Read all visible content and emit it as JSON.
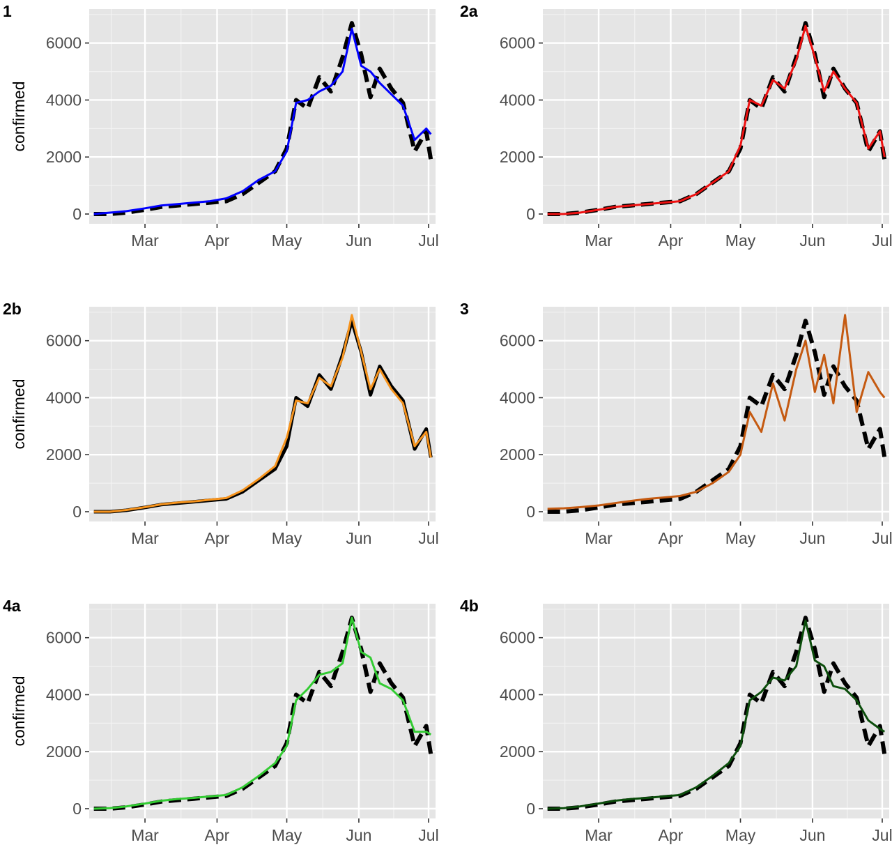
{
  "chart_data": [
    {
      "type": "line",
      "tag": "1",
      "xlabel": "",
      "ylabel": "confirmed",
      "ylim": [
        0,
        6800
      ],
      "xlim": [
        "2020-02-06",
        "2020-07-04"
      ],
      "grid": true,
      "x_ticks": [
        {
          "date": "2020-03-01",
          "label": "Mar"
        },
        {
          "date": "2020-04-01",
          "label": "Apr"
        },
        {
          "date": "2020-05-01",
          "label": "May"
        },
        {
          "date": "2020-06-01",
          "label": "Jun"
        },
        {
          "date": "2020-07-01",
          "label": "Jul"
        }
      ],
      "y_ticks": [
        0,
        2000,
        4000,
        6000
      ],
      "observed": {
        "color": "#000000",
        "style": "dashed",
        "x": [
          "2020-02-08",
          "2020-02-15",
          "2020-02-22",
          "2020-03-01",
          "2020-03-08",
          "2020-03-15",
          "2020-03-22",
          "2020-03-29",
          "2020-04-05",
          "2020-04-12",
          "2020-04-19",
          "2020-04-26",
          "2020-05-01",
          "2020-05-05",
          "2020-05-10",
          "2020-05-15",
          "2020-05-20",
          "2020-05-25",
          "2020-05-29",
          "2020-06-02",
          "2020-06-06",
          "2020-06-10",
          "2020-06-15",
          "2020-06-20",
          "2020-06-25",
          "2020-06-30",
          "2020-07-02"
        ],
        "y": [
          0,
          0,
          50,
          150,
          250,
          300,
          350,
          400,
          450,
          700,
          1100,
          1500,
          2300,
          4000,
          3700,
          4800,
          4300,
          5500,
          6700,
          5600,
          4100,
          5100,
          4400,
          3900,
          2200,
          2900,
          1900
        ]
      },
      "fitted": {
        "color": "#0000ff",
        "style": "solid",
        "x": [
          "2020-02-08",
          "2020-02-15",
          "2020-02-22",
          "2020-03-01",
          "2020-03-08",
          "2020-03-15",
          "2020-03-22",
          "2020-03-29",
          "2020-04-05",
          "2020-04-12",
          "2020-04-19",
          "2020-04-26",
          "2020-05-01",
          "2020-05-05",
          "2020-05-10",
          "2020-05-15",
          "2020-05-20",
          "2020-05-25",
          "2020-05-29",
          "2020-06-02",
          "2020-06-06",
          "2020-06-10",
          "2020-06-15",
          "2020-06-20",
          "2020-06-25",
          "2020-06-30",
          "2020-07-02"
        ],
        "y": [
          0,
          50,
          100,
          200,
          300,
          350,
          400,
          450,
          550,
          800,
          1200,
          1500,
          2200,
          3900,
          4000,
          4300,
          4500,
          5000,
          6500,
          5200,
          5000,
          4600,
          4200,
          3800,
          2600,
          3000,
          2800
        ]
      }
    },
    {
      "type": "line",
      "tag": "2a",
      "xlabel": "",
      "ylabel": "",
      "ylim": [
        0,
        6800
      ],
      "xlim": [
        "2020-02-06",
        "2020-07-04"
      ],
      "grid": true,
      "x_ticks": [
        {
          "date": "2020-03-01",
          "label": "Mar"
        },
        {
          "date": "2020-04-01",
          "label": "Apr"
        },
        {
          "date": "2020-05-01",
          "label": "May"
        },
        {
          "date": "2020-06-01",
          "label": "Jun"
        },
        {
          "date": "2020-07-01",
          "label": "Jul"
        }
      ],
      "y_ticks": [
        0,
        2000,
        4000,
        6000
      ],
      "observed": {
        "color": "#000000",
        "style": "dashed",
        "x": [
          "2020-02-08",
          "2020-02-15",
          "2020-02-22",
          "2020-03-01",
          "2020-03-08",
          "2020-03-15",
          "2020-03-22",
          "2020-03-29",
          "2020-04-05",
          "2020-04-12",
          "2020-04-19",
          "2020-04-26",
          "2020-05-01",
          "2020-05-05",
          "2020-05-10",
          "2020-05-15",
          "2020-05-20",
          "2020-05-25",
          "2020-05-29",
          "2020-06-02",
          "2020-06-06",
          "2020-06-10",
          "2020-06-15",
          "2020-06-20",
          "2020-06-25",
          "2020-06-30",
          "2020-07-02"
        ],
        "y": [
          0,
          0,
          50,
          150,
          250,
          300,
          350,
          400,
          450,
          700,
          1100,
          1500,
          2300,
          4000,
          3700,
          4800,
          4300,
          5500,
          6700,
          5600,
          4100,
          5100,
          4400,
          3900,
          2200,
          2900,
          1900
        ]
      },
      "fitted": {
        "color": "#ee1111",
        "style": "solid",
        "x": [
          "2020-02-08",
          "2020-02-15",
          "2020-02-22",
          "2020-03-01",
          "2020-03-08",
          "2020-03-15",
          "2020-03-22",
          "2020-03-29",
          "2020-04-05",
          "2020-04-12",
          "2020-04-19",
          "2020-04-26",
          "2020-05-01",
          "2020-05-05",
          "2020-05-10",
          "2020-05-15",
          "2020-05-20",
          "2020-05-25",
          "2020-05-29",
          "2020-06-02",
          "2020-06-06",
          "2020-06-10",
          "2020-06-15",
          "2020-06-20",
          "2020-06-25",
          "2020-06-30",
          "2020-07-02"
        ],
        "y": [
          0,
          0,
          50,
          150,
          250,
          300,
          350,
          400,
          450,
          700,
          1100,
          1500,
          2400,
          4000,
          3800,
          4700,
          4400,
          5400,
          6600,
          5500,
          4300,
          5000,
          4400,
          3900,
          2300,
          2900,
          2000
        ]
      }
    },
    {
      "type": "line",
      "tag": "2b",
      "xlabel": "",
      "ylabel": "confirmed",
      "ylim": [
        0,
        6800
      ],
      "xlim": [
        "2020-02-06",
        "2020-07-04"
      ],
      "grid": true,
      "x_ticks": [
        {
          "date": "2020-03-01",
          "label": "Mar"
        },
        {
          "date": "2020-04-01",
          "label": "Apr"
        },
        {
          "date": "2020-05-01",
          "label": "May"
        },
        {
          "date": "2020-06-01",
          "label": "Jun"
        },
        {
          "date": "2020-07-01",
          "label": "Jul"
        }
      ],
      "y_ticks": [
        0,
        2000,
        4000,
        6000
      ],
      "observed": {
        "color": "#000000",
        "style": "solid",
        "x": [
          "2020-02-08",
          "2020-02-15",
          "2020-02-22",
          "2020-03-01",
          "2020-03-08",
          "2020-03-15",
          "2020-03-22",
          "2020-03-29",
          "2020-04-05",
          "2020-04-12",
          "2020-04-19",
          "2020-04-26",
          "2020-05-01",
          "2020-05-05",
          "2020-05-10",
          "2020-05-15",
          "2020-05-20",
          "2020-05-25",
          "2020-05-29",
          "2020-06-02",
          "2020-06-06",
          "2020-06-10",
          "2020-06-15",
          "2020-06-20",
          "2020-06-25",
          "2020-06-30",
          "2020-07-02"
        ],
        "y": [
          0,
          0,
          50,
          150,
          250,
          300,
          350,
          400,
          450,
          700,
          1100,
          1500,
          2300,
          4000,
          3700,
          4800,
          4300,
          5500,
          6700,
          5600,
          4100,
          5100,
          4400,
          3900,
          2200,
          2900,
          1900
        ]
      },
      "fitted": {
        "color": "#f7941d",
        "style": "solid",
        "x": [
          "2020-02-08",
          "2020-02-15",
          "2020-02-22",
          "2020-03-01",
          "2020-03-08",
          "2020-03-15",
          "2020-03-22",
          "2020-03-29",
          "2020-04-05",
          "2020-04-12",
          "2020-04-19",
          "2020-04-26",
          "2020-05-01",
          "2020-05-05",
          "2020-05-10",
          "2020-05-15",
          "2020-05-20",
          "2020-05-25",
          "2020-05-29",
          "2020-06-02",
          "2020-06-06",
          "2020-06-10",
          "2020-06-15",
          "2020-06-20",
          "2020-06-25",
          "2020-06-30",
          "2020-07-02"
        ],
        "y": [
          0,
          0,
          60,
          160,
          260,
          320,
          360,
          420,
          480,
          750,
          1150,
          1600,
          2600,
          3900,
          3800,
          4700,
          4400,
          5400,
          6900,
          5600,
          4300,
          5000,
          4300,
          3800,
          2300,
          2800,
          1900
        ]
      }
    },
    {
      "type": "line",
      "tag": "3",
      "xlabel": "",
      "ylabel": "",
      "ylim": [
        0,
        6800
      ],
      "xlim": [
        "2020-02-06",
        "2020-07-04"
      ],
      "grid": true,
      "x_ticks": [
        {
          "date": "2020-03-01",
          "label": "Mar"
        },
        {
          "date": "2020-04-01",
          "label": "Apr"
        },
        {
          "date": "2020-05-01",
          "label": "May"
        },
        {
          "date": "2020-06-01",
          "label": "Jun"
        },
        {
          "date": "2020-07-01",
          "label": "Jul"
        }
      ],
      "y_ticks": [
        0,
        2000,
        4000,
        6000
      ],
      "observed": {
        "color": "#000000",
        "style": "dashed",
        "x": [
          "2020-02-08",
          "2020-02-15",
          "2020-02-22",
          "2020-03-01",
          "2020-03-08",
          "2020-03-15",
          "2020-03-22",
          "2020-03-29",
          "2020-04-05",
          "2020-04-12",
          "2020-04-19",
          "2020-04-26",
          "2020-05-01",
          "2020-05-05",
          "2020-05-10",
          "2020-05-15",
          "2020-05-20",
          "2020-05-25",
          "2020-05-29",
          "2020-06-02",
          "2020-06-06",
          "2020-06-10",
          "2020-06-15",
          "2020-06-20",
          "2020-06-25",
          "2020-06-30",
          "2020-07-02"
        ],
        "y": [
          0,
          0,
          50,
          150,
          250,
          300,
          350,
          400,
          450,
          700,
          1100,
          1500,
          2300,
          4000,
          3700,
          4800,
          4300,
          5500,
          6700,
          5600,
          4100,
          5100,
          4400,
          3900,
          2200,
          2900,
          1900
        ]
      },
      "fitted": {
        "color": "#c55a11",
        "style": "solid",
        "x": [
          "2020-02-08",
          "2020-02-15",
          "2020-02-22",
          "2020-03-01",
          "2020-03-08",
          "2020-03-15",
          "2020-03-22",
          "2020-03-29",
          "2020-04-05",
          "2020-04-12",
          "2020-04-19",
          "2020-04-26",
          "2020-05-01",
          "2020-05-05",
          "2020-05-10",
          "2020-05-15",
          "2020-05-20",
          "2020-05-25",
          "2020-05-29",
          "2020-06-02",
          "2020-06-06",
          "2020-06-10",
          "2020-06-15",
          "2020-06-20",
          "2020-06-25",
          "2020-06-30",
          "2020-07-02"
        ],
        "y": [
          100,
          120,
          160,
          220,
          300,
          380,
          450,
          500,
          550,
          700,
          1000,
          1400,
          2000,
          3500,
          2800,
          4500,
          3200,
          5000,
          6000,
          4200,
          5500,
          3800,
          6900,
          3500,
          4900,
          4200,
          4000
        ]
      }
    },
    {
      "type": "line",
      "tag": "4a",
      "xlabel": "",
      "ylabel": "confirmed",
      "ylim": [
        0,
        6800
      ],
      "xlim": [
        "2020-02-06",
        "2020-07-04"
      ],
      "grid": true,
      "x_ticks": [
        {
          "date": "2020-03-01",
          "label": "Mar"
        },
        {
          "date": "2020-04-01",
          "label": "Apr"
        },
        {
          "date": "2020-05-01",
          "label": "May"
        },
        {
          "date": "2020-06-01",
          "label": "Jun"
        },
        {
          "date": "2020-07-01",
          "label": "Jul"
        }
      ],
      "y_ticks": [
        0,
        2000,
        4000,
        6000
      ],
      "observed": {
        "color": "#000000",
        "style": "dashed",
        "x": [
          "2020-02-08",
          "2020-02-15",
          "2020-02-22",
          "2020-03-01",
          "2020-03-08",
          "2020-03-15",
          "2020-03-22",
          "2020-03-29",
          "2020-04-05",
          "2020-04-12",
          "2020-04-19",
          "2020-04-26",
          "2020-05-01",
          "2020-05-05",
          "2020-05-10",
          "2020-05-15",
          "2020-05-20",
          "2020-05-25",
          "2020-05-29",
          "2020-06-02",
          "2020-06-06",
          "2020-06-10",
          "2020-06-15",
          "2020-06-20",
          "2020-06-25",
          "2020-06-30",
          "2020-07-02"
        ],
        "y": [
          0,
          0,
          50,
          150,
          250,
          300,
          350,
          400,
          450,
          700,
          1100,
          1500,
          2300,
          4000,
          3700,
          4800,
          4300,
          5500,
          6700,
          5600,
          4100,
          5100,
          4400,
          3900,
          2200,
          2900,
          1900
        ]
      },
      "fitted": {
        "color": "#33cc33",
        "style": "solid",
        "x": [
          "2020-02-08",
          "2020-02-15",
          "2020-02-22",
          "2020-03-01",
          "2020-03-08",
          "2020-03-15",
          "2020-03-22",
          "2020-03-29",
          "2020-04-05",
          "2020-04-12",
          "2020-04-19",
          "2020-04-26",
          "2020-05-01",
          "2020-05-05",
          "2020-05-10",
          "2020-05-15",
          "2020-05-20",
          "2020-05-25",
          "2020-05-29",
          "2020-06-02",
          "2020-06-06",
          "2020-06-10",
          "2020-06-15",
          "2020-06-20",
          "2020-06-25",
          "2020-06-30",
          "2020-07-02"
        ],
        "y": [
          0,
          20,
          80,
          180,
          280,
          340,
          380,
          430,
          480,
          750,
          1150,
          1600,
          2200,
          3800,
          4200,
          4700,
          4800,
          5100,
          6700,
          5500,
          5300,
          4400,
          4200,
          3800,
          2700,
          2700,
          2600
        ]
      }
    },
    {
      "type": "line",
      "tag": "4b",
      "xlabel": "",
      "ylabel": "",
      "ylim": [
        0,
        6800
      ],
      "xlim": [
        "2020-02-06",
        "2020-07-04"
      ],
      "grid": true,
      "x_ticks": [
        {
          "date": "2020-03-01",
          "label": "Mar"
        },
        {
          "date": "2020-04-01",
          "label": "Apr"
        },
        {
          "date": "2020-05-01",
          "label": "May"
        },
        {
          "date": "2020-06-01",
          "label": "Jun"
        },
        {
          "date": "2020-07-01",
          "label": "Jul"
        }
      ],
      "y_ticks": [
        0,
        2000,
        4000,
        6000
      ],
      "observed": {
        "color": "#000000",
        "style": "dashed",
        "x": [
          "2020-02-08",
          "2020-02-15",
          "2020-02-22",
          "2020-03-01",
          "2020-03-08",
          "2020-03-15",
          "2020-03-22",
          "2020-03-29",
          "2020-04-05",
          "2020-04-12",
          "2020-04-19",
          "2020-04-26",
          "2020-05-01",
          "2020-05-05",
          "2020-05-10",
          "2020-05-15",
          "2020-05-20",
          "2020-05-25",
          "2020-05-29",
          "2020-06-02",
          "2020-06-06",
          "2020-06-10",
          "2020-06-15",
          "2020-06-20",
          "2020-06-25",
          "2020-06-30",
          "2020-07-02"
        ],
        "y": [
          0,
          0,
          50,
          150,
          250,
          300,
          350,
          400,
          450,
          700,
          1100,
          1500,
          2300,
          4000,
          3700,
          4800,
          4300,
          5500,
          6700,
          5600,
          4100,
          5100,
          4400,
          3900,
          2200,
          2900,
          1900
        ]
      },
      "fitted": {
        "color": "#0b4d0b",
        "style": "solid",
        "x": [
          "2020-02-08",
          "2020-02-15",
          "2020-02-22",
          "2020-03-01",
          "2020-03-08",
          "2020-03-15",
          "2020-03-22",
          "2020-03-29",
          "2020-04-05",
          "2020-04-12",
          "2020-04-19",
          "2020-04-26",
          "2020-05-01",
          "2020-05-05",
          "2020-05-10",
          "2020-05-15",
          "2020-05-20",
          "2020-05-25",
          "2020-05-29",
          "2020-06-02",
          "2020-06-06",
          "2020-06-10",
          "2020-06-15",
          "2020-06-20",
          "2020-06-25",
          "2020-06-30",
          "2020-07-02"
        ],
        "y": [
          0,
          20,
          80,
          180,
          280,
          340,
          380,
          430,
          480,
          750,
          1150,
          1600,
          2200,
          3800,
          4100,
          4600,
          4500,
          5000,
          6600,
          5200,
          5000,
          4300,
          4200,
          3800,
          3100,
          2800,
          2700
        ]
      }
    }
  ]
}
